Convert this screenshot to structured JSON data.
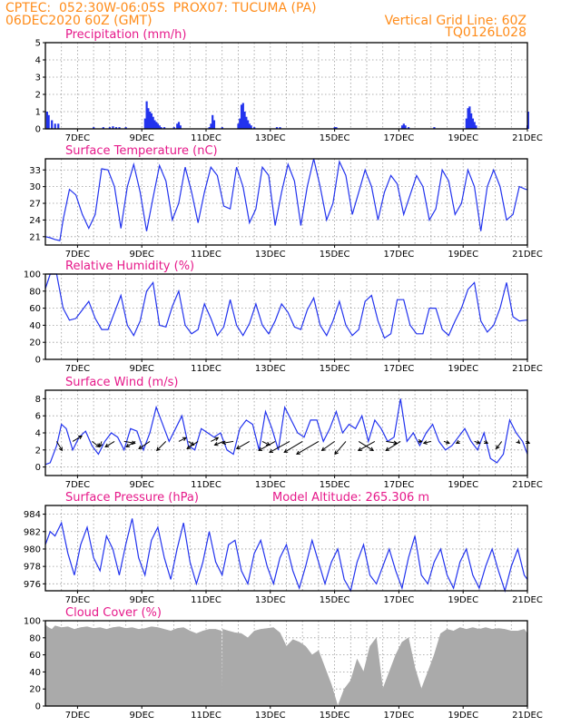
{
  "header": {
    "line1_left": "CPTEC:  052:30W-06:05S  PROX07: TUCUMA (PA)",
    "line2_left": "06DEC2020 60Z (GMT)",
    "line2_right": "Vertical Grid Line: 60Z",
    "line3_right": "TQ0126L028"
  },
  "colors": {
    "line": "#2233ee",
    "cloud": "#aaaaaa",
    "header": "#ff8c1a",
    "title": "#e6198a"
  },
  "chart_data": [
    {
      "type": "bar",
      "title": "Precipitation (mm/h)",
      "ylim": [
        0,
        5
      ],
      "yticks": [
        0,
        1,
        2,
        3,
        4,
        5
      ],
      "xticklabels": [
        "7DEC",
        "9DEC",
        "11DEC",
        "13DEC",
        "15DEC",
        "17DEC",
        "19DEC",
        "21DEC"
      ],
      "x": [
        0.05,
        0.1,
        0.2,
        0.3,
        0.4,
        1.5,
        1.8,
        2.0,
        2.1,
        2.2,
        2.3,
        2.5,
        3.1,
        3.15,
        3.2,
        3.25,
        3.3,
        3.35,
        3.4,
        3.45,
        3.5,
        3.55,
        3.6,
        3.7,
        4.0,
        4.1,
        4.15,
        4.2,
        5.1,
        5.15,
        5.2,
        5.25,
        5.5,
        6.0,
        6.05,
        6.1,
        6.15,
        6.2,
        6.25,
        6.3,
        6.35,
        6.4,
        6.5,
        7.2,
        7.3,
        9.0,
        9.05,
        11.1,
        11.15,
        11.2,
        11.3,
        12.1,
        13.1,
        13.15,
        13.2,
        13.25,
        13.3,
        13.35,
        13.4,
        15.0,
        15.02
      ],
      "values": [
        1.0,
        0.8,
        0.5,
        0.3,
        0.3,
        0.1,
        0.1,
        0.1,
        0.15,
        0.1,
        0.1,
        0.1,
        0.6,
        1.6,
        1.2,
        1.0,
        0.9,
        0.7,
        0.5,
        0.4,
        0.3,
        0.2,
        0.1,
        0.1,
        0.1,
        0.3,
        0.4,
        0.2,
        0.1,
        0.3,
        0.8,
        0.5,
        0.1,
        0.3,
        0.6,
        1.4,
        1.5,
        1.0,
        0.7,
        0.5,
        0.3,
        0.2,
        0.1,
        0.1,
        0.1,
        0.1,
        0.1,
        0.2,
        0.3,
        0.2,
        0.1,
        0.1,
        0.6,
        1.2,
        1.3,
        0.9,
        0.6,
        0.4,
        0.2,
        0.2,
        1.0
      ]
    },
    {
      "type": "line",
      "title": "Surface Temperature (nC)",
      "ylim": [
        19.5,
        35
      ],
      "yticks": [
        21,
        24,
        27,
        30,
        33
      ],
      "xticklabels": [
        "7DEC",
        "9DEC",
        "11DEC",
        "13DEC",
        "15DEC",
        "17DEC",
        "19DEC",
        "21DEC"
      ],
      "x": [
        0.0,
        0.15,
        0.3,
        0.45,
        0.55,
        0.75,
        0.95,
        1.15,
        1.35,
        1.55,
        1.75,
        1.95,
        2.15,
        2.35,
        2.55,
        2.75,
        2.95,
        3.15,
        3.35,
        3.55,
        3.75,
        3.95,
        4.15,
        4.35,
        4.55,
        4.75,
        4.95,
        5.15,
        5.35,
        5.55,
        5.75,
        5.95,
        6.15,
        6.35,
        6.55,
        6.75,
        6.95,
        7.15,
        7.35,
        7.55,
        7.75,
        7.95,
        8.15,
        8.35,
        8.55,
        8.75,
        8.95,
        9.15,
        9.35,
        9.55,
        9.75,
        9.95,
        10.15,
        10.35,
        10.55,
        10.75,
        10.95,
        11.15,
        11.35,
        11.55,
        11.75,
        11.95,
        12.15,
        12.35,
        12.55,
        12.75,
        12.95,
        13.15,
        13.35,
        13.55,
        13.75,
        13.95,
        14.15,
        14.35,
        14.55,
        14.75,
        14.95,
        15.0
      ],
      "values": [
        21,
        20.8,
        20.5,
        20.3,
        24,
        29.5,
        28.5,
        25,
        22.5,
        25,
        33.2,
        33,
        30,
        22.5,
        30,
        34,
        29,
        22,
        28,
        33.8,
        31,
        24,
        27,
        33.5,
        29,
        23.5,
        29,
        33.5,
        32,
        26.5,
        26,
        33.5,
        30,
        23.5,
        26,
        33.5,
        32,
        23,
        29,
        34,
        31,
        23,
        30,
        35,
        30,
        24,
        27,
        34.5,
        32,
        25,
        29,
        33,
        30,
        24,
        29,
        32,
        30.5,
        25,
        28.5,
        32,
        30,
        24,
        26,
        33,
        31,
        25,
        27,
        33,
        30,
        22,
        30,
        33,
        30,
        24,
        25,
        30,
        29.5,
        29.5
      ]
    },
    {
      "type": "line",
      "title": "Relative Humidity (%)",
      "ylim": [
        0,
        100
      ],
      "yticks": [
        0,
        20,
        40,
        60,
        80,
        100
      ],
      "xticklabels": [
        "7DEC",
        "9DEC",
        "11DEC",
        "13DEC",
        "15DEC",
        "17DEC",
        "19DEC",
        "21DEC"
      ],
      "x": [
        0.0,
        0.15,
        0.35,
        0.55,
        0.75,
        0.95,
        1.15,
        1.35,
        1.55,
        1.75,
        1.95,
        2.15,
        2.35,
        2.55,
        2.75,
        2.95,
        3.15,
        3.35,
        3.55,
        3.75,
        3.95,
        4.15,
        4.35,
        4.55,
        4.75,
        4.95,
        5.15,
        5.35,
        5.55,
        5.75,
        5.95,
        6.15,
        6.35,
        6.55,
        6.75,
        6.95,
        7.15,
        7.35,
        7.55,
        7.75,
        7.95,
        8.15,
        8.35,
        8.55,
        8.75,
        8.95,
        9.15,
        9.35,
        9.55,
        9.75,
        9.95,
        10.15,
        10.35,
        10.55,
        10.75,
        10.95,
        11.15,
        11.35,
        11.55,
        11.75,
        11.95,
        12.15,
        12.35,
        12.55,
        12.75,
        12.95,
        13.15,
        13.35,
        13.55,
        13.75,
        13.95,
        14.15,
        14.35,
        14.55,
        14.75,
        14.95,
        15.0
      ],
      "values": [
        83,
        100,
        100,
        60,
        46,
        48,
        58,
        68,
        48,
        35,
        35,
        55,
        75,
        40,
        28,
        45,
        80,
        90,
        40,
        38,
        62,
        80,
        40,
        30,
        35,
        65,
        48,
        28,
        38,
        70,
        40,
        28,
        42,
        65,
        40,
        30,
        45,
        65,
        55,
        38,
        35,
        58,
        72,
        40,
        28,
        45,
        68,
        40,
        28,
        35,
        68,
        75,
        45,
        25,
        30,
        70,
        70,
        40,
        30,
        30,
        60,
        60,
        35,
        28,
        45,
        60,
        82,
        90,
        45,
        32,
        40,
        60,
        90,
        50,
        45,
        46,
        46
      ]
    },
    {
      "type": "line",
      "title": "Surface Wind (m/s)",
      "ylim": [
        -1,
        9
      ],
      "yticks": [
        0,
        2,
        4,
        6,
        8
      ],
      "xticklabels": [
        "7DEC",
        "9DEC",
        "11DEC",
        "13DEC",
        "15DEC",
        "17DEC",
        "19DEC",
        "21DEC"
      ],
      "x": [
        0.0,
        0.15,
        0.35,
        0.5,
        0.65,
        0.85,
        1.05,
        1.25,
        1.45,
        1.65,
        1.85,
        2.05,
        2.25,
        2.45,
        2.65,
        2.85,
        3.05,
        3.25,
        3.45,
        3.65,
        3.85,
        4.05,
        4.25,
        4.45,
        4.65,
        4.85,
        5.05,
        5.25,
        5.45,
        5.65,
        5.85,
        6.05,
        6.25,
        6.45,
        6.65,
        6.85,
        7.05,
        7.25,
        7.45,
        7.65,
        7.85,
        8.05,
        8.25,
        8.45,
        8.65,
        8.85,
        9.05,
        9.25,
        9.45,
        9.65,
        9.85,
        10.05,
        10.25,
        10.45,
        10.65,
        10.85,
        11.05,
        11.25,
        11.45,
        11.65,
        11.85,
        12.05,
        12.25,
        12.45,
        12.65,
        12.85,
        13.05,
        13.25,
        13.45,
        13.65,
        13.85,
        14.05,
        14.25,
        14.45,
        14.65,
        14.85,
        15.0
      ],
      "values": [
        0.3,
        0.5,
        2.5,
        5.0,
        4.5,
        2.0,
        3.5,
        4.2,
        2.5,
        1.5,
        3.0,
        4.0,
        3.5,
        2.0,
        4.5,
        4.2,
        2.0,
        4.0,
        7.0,
        5.0,
        3.0,
        4.5,
        6.0,
        2.5,
        2.0,
        4.5,
        4.0,
        3.5,
        4.0,
        2.0,
        1.5,
        4.5,
        5.5,
        5.0,
        2.0,
        6.5,
        4.5,
        2.0,
        7.0,
        5.5,
        4.0,
        3.5,
        5.5,
        5.5,
        3.0,
        4.5,
        6.5,
        4.0,
        5.0,
        4.5,
        6.0,
        3.0,
        5.5,
        4.5,
        3.0,
        3.5,
        8.0,
        3.0,
        4.0,
        2.5,
        4.0,
        5.0,
        3.0,
        2.0,
        2.5,
        3.5,
        4.5,
        3.0,
        2.0,
        4.0,
        1.0,
        0.5,
        1.5,
        5.5,
        4.0,
        3.0,
        1.5
      ],
      "arrows": {
        "x": [
          0.35,
          0.85,
          1.45,
          1.75,
          2.15,
          2.45,
          2.8,
          3.25,
          3.75,
          4.15,
          4.45,
          4.75,
          5.15,
          5.55,
          5.85,
          6.35,
          6.75,
          7.15,
          7.6,
          8.0,
          8.5,
          9.0,
          9.35,
          9.75,
          10.25,
          10.6,
          11.05,
          11.6,
          12.0,
          12.4,
          12.9,
          13.35,
          13.65,
          14.2,
          14.7,
          14.95
        ],
        "u": [
          -1.5,
          -2.5,
          -2.0,
          0.5,
          2.5,
          -3.0,
          2.5,
          3.0,
          2.5,
          -2.0,
          -1.5,
          3.0,
          -2.0,
          2.5,
          3.0,
          3.5,
          -2.0,
          4.5,
          5.5,
          5.0,
          6.0,
          3.5,
          3.0,
          -4.0,
          4.5,
          -3.0,
          4.0,
          -1.0,
          2.0,
          -1.5,
          1.0,
          -1.5,
          -1.0,
          1.5,
          -0.5,
          -1.0
        ],
        "v": [
          2.5,
          -1.5,
          1.5,
          1.5,
          1.5,
          0.5,
          1.5,
          2.0,
          2.5,
          -1.0,
          1.0,
          2.0,
          -1.0,
          1.0,
          0.5,
          2.0,
          1.0,
          2.5,
          3.0,
          3.0,
          3.5,
          2.5,
          3.5,
          2.5,
          2.5,
          0.5,
          2.5,
          0.0,
          0.5,
          0.5,
          0.5,
          0.5,
          0.5,
          2.0,
          0.5,
          0.5
        ]
      }
    },
    {
      "type": "line",
      "title": "Surface Pressure (hPa)",
      "annotation": "Model Altitude: 265.306 m",
      "ylim": [
        975.2,
        985
      ],
      "yticks": [
        976,
        978,
        980,
        982,
        984
      ],
      "xticklabels": [
        "7DEC",
        "9DEC",
        "11DEC",
        "13DEC",
        "15DEC",
        "17DEC",
        "19DEC",
        "21DEC"
      ],
      "x": [
        0.0,
        0.15,
        0.3,
        0.5,
        0.7,
        0.9,
        1.1,
        1.3,
        1.5,
        1.7,
        1.9,
        2.1,
        2.3,
        2.5,
        2.7,
        2.9,
        3.1,
        3.3,
        3.5,
        3.7,
        3.9,
        4.1,
        4.3,
        4.5,
        4.7,
        4.9,
        5.1,
        5.3,
        5.5,
        5.7,
        5.9,
        6.1,
        6.3,
        6.5,
        6.7,
        6.9,
        7.1,
        7.3,
        7.5,
        7.7,
        7.9,
        8.1,
        8.3,
        8.5,
        8.7,
        8.9,
        9.1,
        9.3,
        9.5,
        9.7,
        9.9,
        10.1,
        10.3,
        10.5,
        10.7,
        10.9,
        11.1,
        11.3,
        11.5,
        11.7,
        11.9,
        12.1,
        12.3,
        12.5,
        12.7,
        12.9,
        13.1,
        13.3,
        13.5,
        13.7,
        13.9,
        14.1,
        14.3,
        14.5,
        14.7,
        14.9,
        15.0
      ],
      "values": [
        980.5,
        982.0,
        981.5,
        983.0,
        979.5,
        977.0,
        980.5,
        982.5,
        979.0,
        977.5,
        981.5,
        980.0,
        977.0,
        980.5,
        983.5,
        979.0,
        977.0,
        981.0,
        982.5,
        979.0,
        976.5,
        980.0,
        983.0,
        978.5,
        976.0,
        978.5,
        982.0,
        978.5,
        977.0,
        980.5,
        981.0,
        977.5,
        976.0,
        979.5,
        981.0,
        978.0,
        976.0,
        979.0,
        980.5,
        977.5,
        975.5,
        978.0,
        981.0,
        978.5,
        976.0,
        978.5,
        980.0,
        976.5,
        975.2,
        978.5,
        980.5,
        977.0,
        976.0,
        978.0,
        980.0,
        977.5,
        975.5,
        979.0,
        981.5,
        977.0,
        976.0,
        978.5,
        980.0,
        977.0,
        975.5,
        978.5,
        980.0,
        977.0,
        975.5,
        978.0,
        980.0,
        977.5,
        975.2,
        978.0,
        980.0,
        977.0,
        976.5
      ]
    },
    {
      "type": "area",
      "title": "Cloud Cover (%)",
      "ylim": [
        0,
        100
      ],
      "yticks": [
        0,
        20,
        40,
        60,
        80,
        100
      ],
      "xticklabels": [
        "7DEC",
        "9DEC",
        "11DEC",
        "13DEC",
        "15DEC",
        "17DEC",
        "19DEC",
        "21DEC"
      ],
      "x": [
        0.0,
        0.1,
        0.2,
        0.3,
        0.5,
        0.7,
        0.9,
        1.1,
        1.3,
        1.5,
        1.7,
        1.9,
        2.1,
        2.3,
        2.5,
        2.7,
        2.9,
        3.1,
        3.3,
        3.5,
        3.7,
        3.9,
        4.1,
        4.3,
        4.5,
        4.7,
        4.9,
        5.1,
        5.3,
        5.48,
        5.5,
        5.52,
        5.7,
        5.9,
        6.1,
        6.3,
        6.5,
        6.7,
        6.9,
        7.1,
        7.3,
        7.5,
        7.7,
        7.9,
        8.1,
        8.3,
        8.5,
        8.7,
        8.9,
        9.1,
        9.3,
        9.5,
        9.7,
        9.9,
        10.1,
        10.3,
        10.5,
        10.7,
        10.9,
        11.1,
        11.3,
        11.5,
        11.7,
        11.9,
        12.1,
        12.3,
        12.5,
        12.7,
        12.9,
        13.1,
        13.3,
        13.5,
        13.7,
        13.9,
        14.1,
        14.3,
        14.5,
        14.7,
        14.9,
        15.0
      ],
      "values": [
        95,
        92,
        90,
        94,
        92,
        93,
        90,
        92,
        93,
        91,
        92,
        90,
        92,
        93,
        91,
        92,
        90,
        91,
        93,
        92,
        90,
        88,
        91,
        92,
        88,
        85,
        88,
        90,
        90,
        88,
        0,
        90,
        88,
        86,
        85,
        80,
        88,
        90,
        91,
        92,
        86,
        70,
        78,
        75,
        70,
        60,
        65,
        45,
        25,
        0,
        20,
        30,
        55,
        40,
        70,
        80,
        20,
        40,
        60,
        75,
        80,
        45,
        20,
        40,
        60,
        85,
        90,
        88,
        92,
        90,
        92,
        90,
        92,
        90,
        91,
        90,
        88,
        88,
        90,
        85
      ]
    }
  ]
}
